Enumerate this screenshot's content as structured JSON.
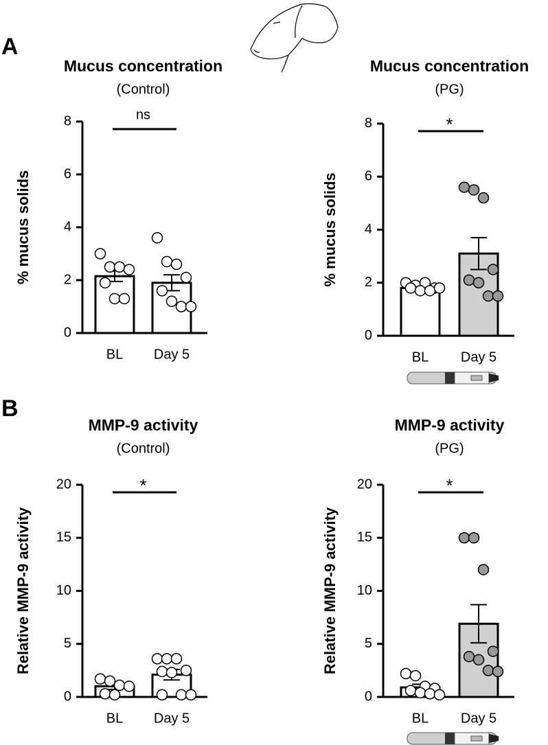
{
  "panel_labels": [
    "A",
    "B"
  ],
  "chart_data": [
    {
      "type": "bar",
      "title": "Mucus concentration",
      "subtitle": "(Control)",
      "ylabel": "% mucus solids",
      "categories": [
        "BL",
        "Day 5"
      ],
      "values": [
        2.15,
        1.9
      ],
      "errors": [
        0.2,
        0.3
      ],
      "bar_colors": [
        "#ffffff",
        "#ffffff"
      ],
      "point_colors": [
        "#ffffff",
        "#ffffff"
      ],
      "points": [
        [
          3.0,
          2.5,
          2.5,
          2.4,
          1.9,
          1.3,
          1.3
        ],
        [
          3.6,
          2.7,
          2.6,
          2.1,
          1.6,
          1.2,
          1.0,
          1.0
        ]
      ],
      "significance": "ns",
      "ylim": [
        0,
        8
      ],
      "yticks": [
        0,
        2,
        4,
        6,
        8
      ]
    },
    {
      "type": "bar",
      "title": "Mucus concentration",
      "subtitle": "(PG)",
      "ylabel": "% mucus solids",
      "categories": [
        "BL",
        "Day 5"
      ],
      "values": [
        1.8,
        3.1
      ],
      "errors": [
        0.1,
        0.6
      ],
      "bar_colors": [
        "#ffffff",
        "#d0d0d0"
      ],
      "point_colors": [
        "#ffffff",
        "#999999"
      ],
      "points": [
        [
          2.0,
          1.9,
          2.0,
          1.8,
          1.8,
          1.7,
          1.7,
          1.8
        ],
        [
          5.6,
          5.5,
          5.2,
          2.5,
          2.1,
          2.0,
          1.5,
          1.5
        ]
      ],
      "significance": "*",
      "ylim": [
        0,
        8
      ],
      "yticks": [
        0,
        2,
        4,
        6,
        8
      ]
    },
    {
      "type": "bar",
      "title": "MMP-9 activity",
      "subtitle": "(Control)",
      "ylabel": "Relative MMP-9 activity",
      "categories": [
        "BL",
        "Day 5"
      ],
      "values": [
        1.0,
        2.1
      ],
      "errors": [
        0.3,
        0.5
      ],
      "bar_colors": [
        "#ffffff",
        "#ffffff"
      ],
      "point_colors": [
        "#ffffff",
        "#ffffff"
      ],
      "points": [
        [
          1.7,
          1.5,
          1.1,
          1.0,
          0.3,
          0.2
        ],
        [
          3.6,
          3.6,
          3.6,
          2.5,
          2.4,
          2.3,
          0.2,
          0.2,
          0.2
        ]
      ],
      "significance": "*",
      "ylim": [
        0,
        20
      ],
      "yticks": [
        0,
        5,
        10,
        15,
        20
      ]
    },
    {
      "type": "bar",
      "title": "MMP-9 activity",
      "subtitle": "(PG)",
      "ylabel": "Relative MMP-9 activity",
      "categories": [
        "BL",
        "Day 5"
      ],
      "values": [
        0.9,
        6.9
      ],
      "errors": [
        0.3,
        1.8
      ],
      "bar_colors": [
        "#ffffff",
        "#d0d0d0"
      ],
      "point_colors": [
        "#ffffff",
        "#999999"
      ],
      "points": [
        [
          2.2,
          2.0,
          1.0,
          0.8,
          0.6,
          0.4,
          0.3,
          0.2
        ],
        [
          15,
          15,
          12,
          4.3,
          3.8,
          3.5,
          2.5,
          2.4
        ]
      ],
      "significance": "*",
      "ylim": [
        0,
        20
      ],
      "yticks": [
        0,
        5,
        10,
        15,
        20
      ]
    }
  ]
}
